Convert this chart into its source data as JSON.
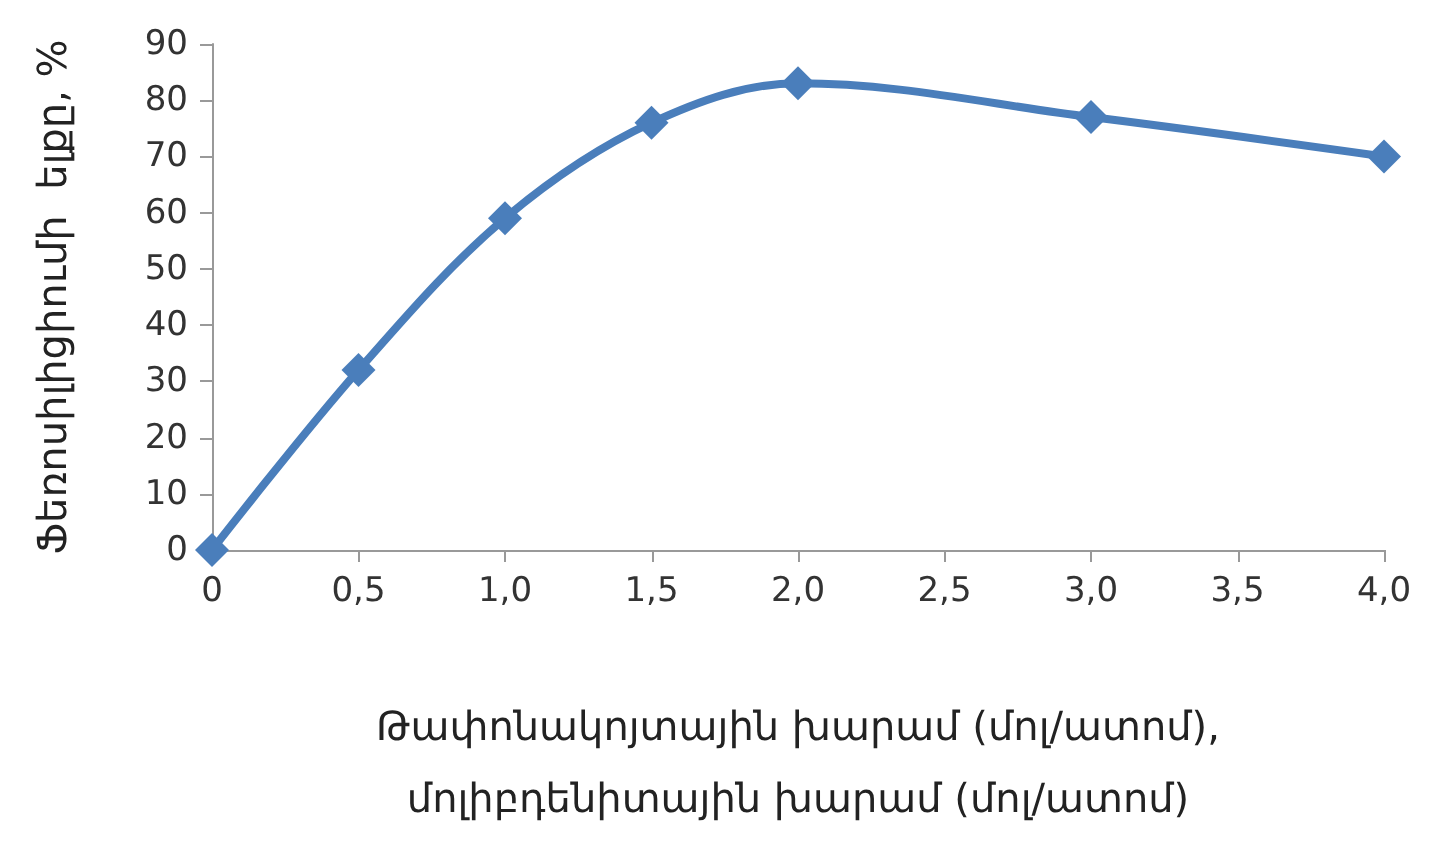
{
  "chart_data": {
    "type": "line",
    "xlabel": "Թափոնակոյտային խարամ (մոլ/ատոմ),\nմոլիբդենիտային խարամ (մոլ/ատոմ)",
    "ylabel": "Ֆեռոսիլիցիումի  ելքը, %",
    "x": [
      0,
      0.5,
      1.0,
      1.5,
      2.0,
      3.0,
      4.0
    ],
    "series": [
      {
        "color": "#4a7ebb",
        "values": [
          0,
          32,
          59,
          76,
          83,
          77,
          70
        ]
      }
    ],
    "xlim": [
      0,
      4
    ],
    "xticks": [
      0,
      {
        "value": 0.5,
        "label": "0,5"
      },
      {
        "value": 1,
        "label": "1,0"
      },
      {
        "value": 1.5,
        "label": "1,5"
      },
      {
        "value": 2,
        "label": "2,0"
      },
      {
        "value": 2.5,
        "label": "2,5"
      },
      {
        "value": 3,
        "label": "3,0"
      },
      {
        "value": 3.5,
        "label": "3,5"
      },
      {
        "value": 4,
        "label": "4,0"
      }
    ],
    "ylim": [
      0,
      90
    ],
    "yticks": [
      0,
      10,
      20,
      30,
      40,
      50,
      60,
      70,
      80,
      90
    ],
    "marker": "diamond",
    "line_style": "solid"
  }
}
